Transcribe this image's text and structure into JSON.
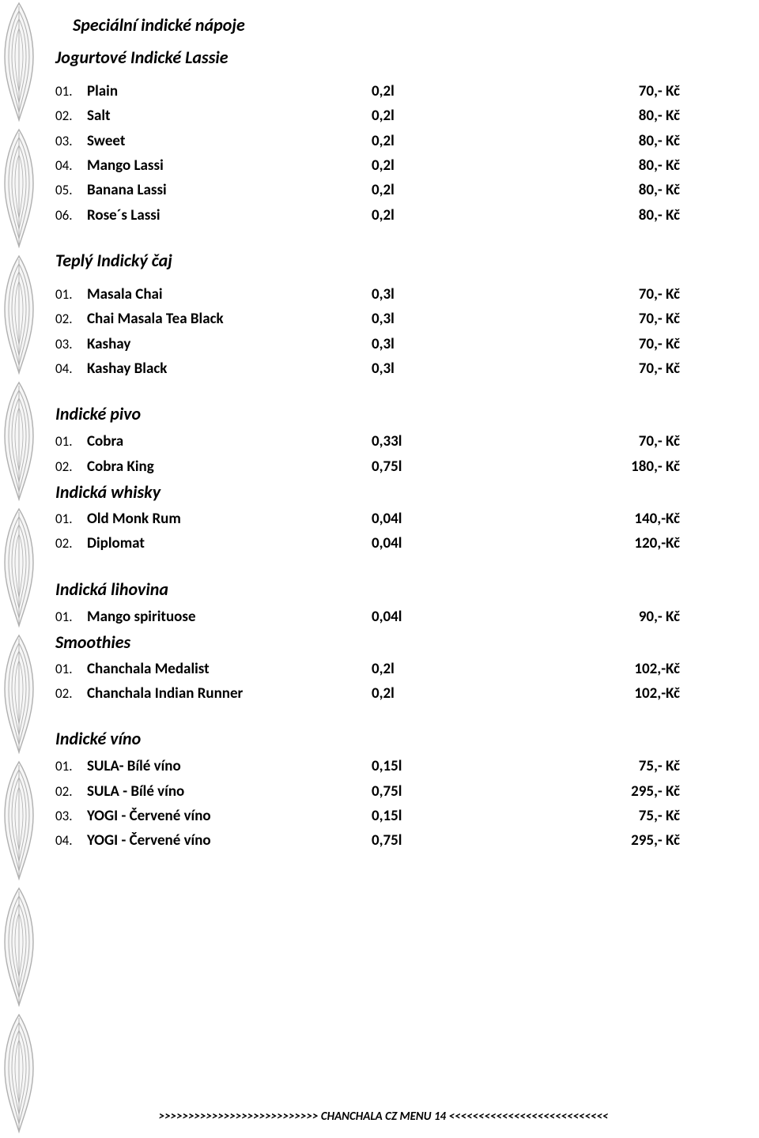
{
  "page_title": "Speciální indické nápoje",
  "footer": ">>>>>>>>>>>>>>>>>>>>>>>>>>> CHANCHALA CZ MENU 14 <<<<<<<<<<<<<<<<<<<<<<<<<<<",
  "border": {
    "stroke": "#b0b0b0",
    "fill": "#f6f6f6",
    "motif_count": 9,
    "motif_height": 160
  },
  "colors": {
    "text": "#000000",
    "background": "#ffffff"
  },
  "typography": {
    "title_fontsize": 22,
    "row_fontsize": 19,
    "num_fontsize": 17,
    "footer_fontsize": 15,
    "font_family": "Calibri"
  },
  "sections": [
    {
      "title": "Jogurtové Indické Lassie",
      "title_style": "flush",
      "rows": [
        {
          "num": "01.",
          "name": "Plain",
          "vol": "0,2l",
          "price": "70,- Kč"
        },
        {
          "num": "02.",
          "name": "Salt",
          "vol": "0,2l",
          "price": "80,- Kč"
        },
        {
          "num": "03.",
          "name": "Sweet",
          "vol": "0,2l",
          "price": "80,- Kč"
        },
        {
          "num": "04.",
          "name": "Mango Lassi",
          "vol": "0,2l",
          "price": "80,- Kč"
        },
        {
          "num": "05.",
          "name": "Banana Lassi",
          "vol": "0,2l",
          "price": "80,- Kč"
        },
        {
          "num": "06.",
          "name": "Rose´s Lassi",
          "vol": "0,2l",
          "price": "80,- Kč"
        }
      ]
    },
    {
      "title": "Teplý Indický čaj",
      "title_style": "flush",
      "rows": [
        {
          "num": "01.",
          "name": "Masala Chai",
          "vol": "0,3l",
          "price": "70,- Kč"
        },
        {
          "num": "02.",
          "name": "Chai Masala Tea Black",
          "vol": "0,3l",
          "price": "70,- Kč"
        },
        {
          "num": "03.",
          "name": "Kashay",
          "vol": "0,3l",
          "price": "70,- Kč"
        },
        {
          "num": "04.",
          "name": "Kashay Black",
          "vol": "0,3l",
          "price": "70,- Kč"
        }
      ]
    },
    {
      "title": "Indické pivo",
      "title_style": "flush tight-after",
      "rows": [
        {
          "num": "01.",
          "name": "Cobra",
          "vol": "0,33l",
          "price": "70,- Kč"
        },
        {
          "num": "02.",
          "name": "Cobra King",
          "vol": "0,75l",
          "price": "180,- Kč"
        }
      ],
      "follow_title": "Indická whisky",
      "follow_rows": [
        {
          "num": "01.",
          "name": "Old Monk Rum",
          "vol": "0,04l",
          "price": "140,-Kč"
        },
        {
          "num": "02.",
          "name": "Diplomat",
          "vol": "0,04l",
          "price": "120,-Kč"
        }
      ]
    },
    {
      "title": "Indická lihovina",
      "title_style": "flush tight-after",
      "rows": [
        {
          "num": "01.",
          "name": "Mango spirituose",
          "vol": "0,04l",
          "price": "90,- Kč"
        }
      ],
      "follow_title": "Smoothies",
      "follow_rows": [
        {
          "num": "01.",
          "name": "Chanchala Medalist",
          "vol": "0,2l",
          "price": "102,-Kč"
        },
        {
          "num": "02.",
          "name": "Chanchala Indian Runner",
          "vol": "0,2l",
          "price": "102,-Kč"
        }
      ]
    },
    {
      "title": "Indické víno",
      "title_style": "flush tight-after",
      "rows": [
        {
          "num": "01.",
          "name": "SULA- Bílé víno",
          "vol": "0,15l",
          "price": "75,- Kč"
        },
        {
          "num": "02.",
          "name": "SULA - Bílé víno",
          "vol": "0,75l",
          "price": "295,- Kč"
        },
        {
          "num": "03.",
          "name": "YOGI - Červené víno",
          "vol": "0,15l",
          "price": "75,- Kč"
        },
        {
          "num": "04.",
          "name": "YOGI - Červené víno",
          "vol": "0,75l",
          "price": "295,- Kč"
        }
      ]
    }
  ]
}
